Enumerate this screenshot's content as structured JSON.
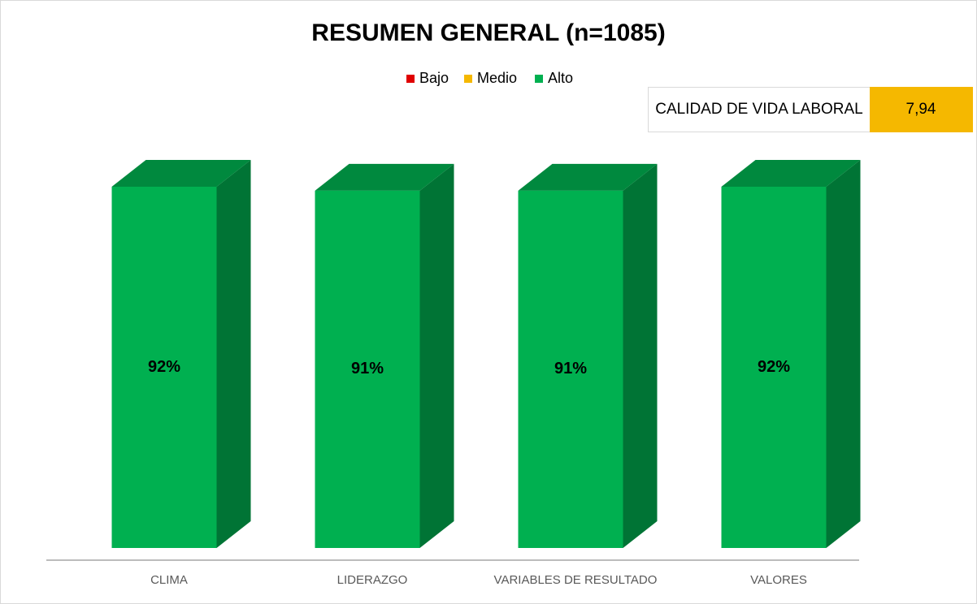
{
  "chart_data": {
    "type": "bar3d",
    "title": "RESUMEN GENERAL (n=1085)",
    "categories": [
      "CLIMA",
      "LIDERAZGO",
      "VARIABLES DE RESULTADO",
      "VALORES"
    ],
    "series": [
      {
        "name": "Bajo",
        "color": "#e00000",
        "values": [
          null,
          null,
          null,
          null
        ]
      },
      {
        "name": "Medio",
        "color": "#f5b800",
        "values": [
          null,
          null,
          null,
          null
        ]
      },
      {
        "name": "Alto",
        "color": "#00b050",
        "values": [
          92,
          91,
          91,
          92
        ],
        "value_labels": [
          "92%",
          "91%",
          "91%",
          "92%"
        ]
      }
    ],
    "kpi": {
      "label": "CALIDAD DE VIDA LABORAL",
      "value": 7.94,
      "value_label": "7,94",
      "color": "#f5b800"
    }
  }
}
